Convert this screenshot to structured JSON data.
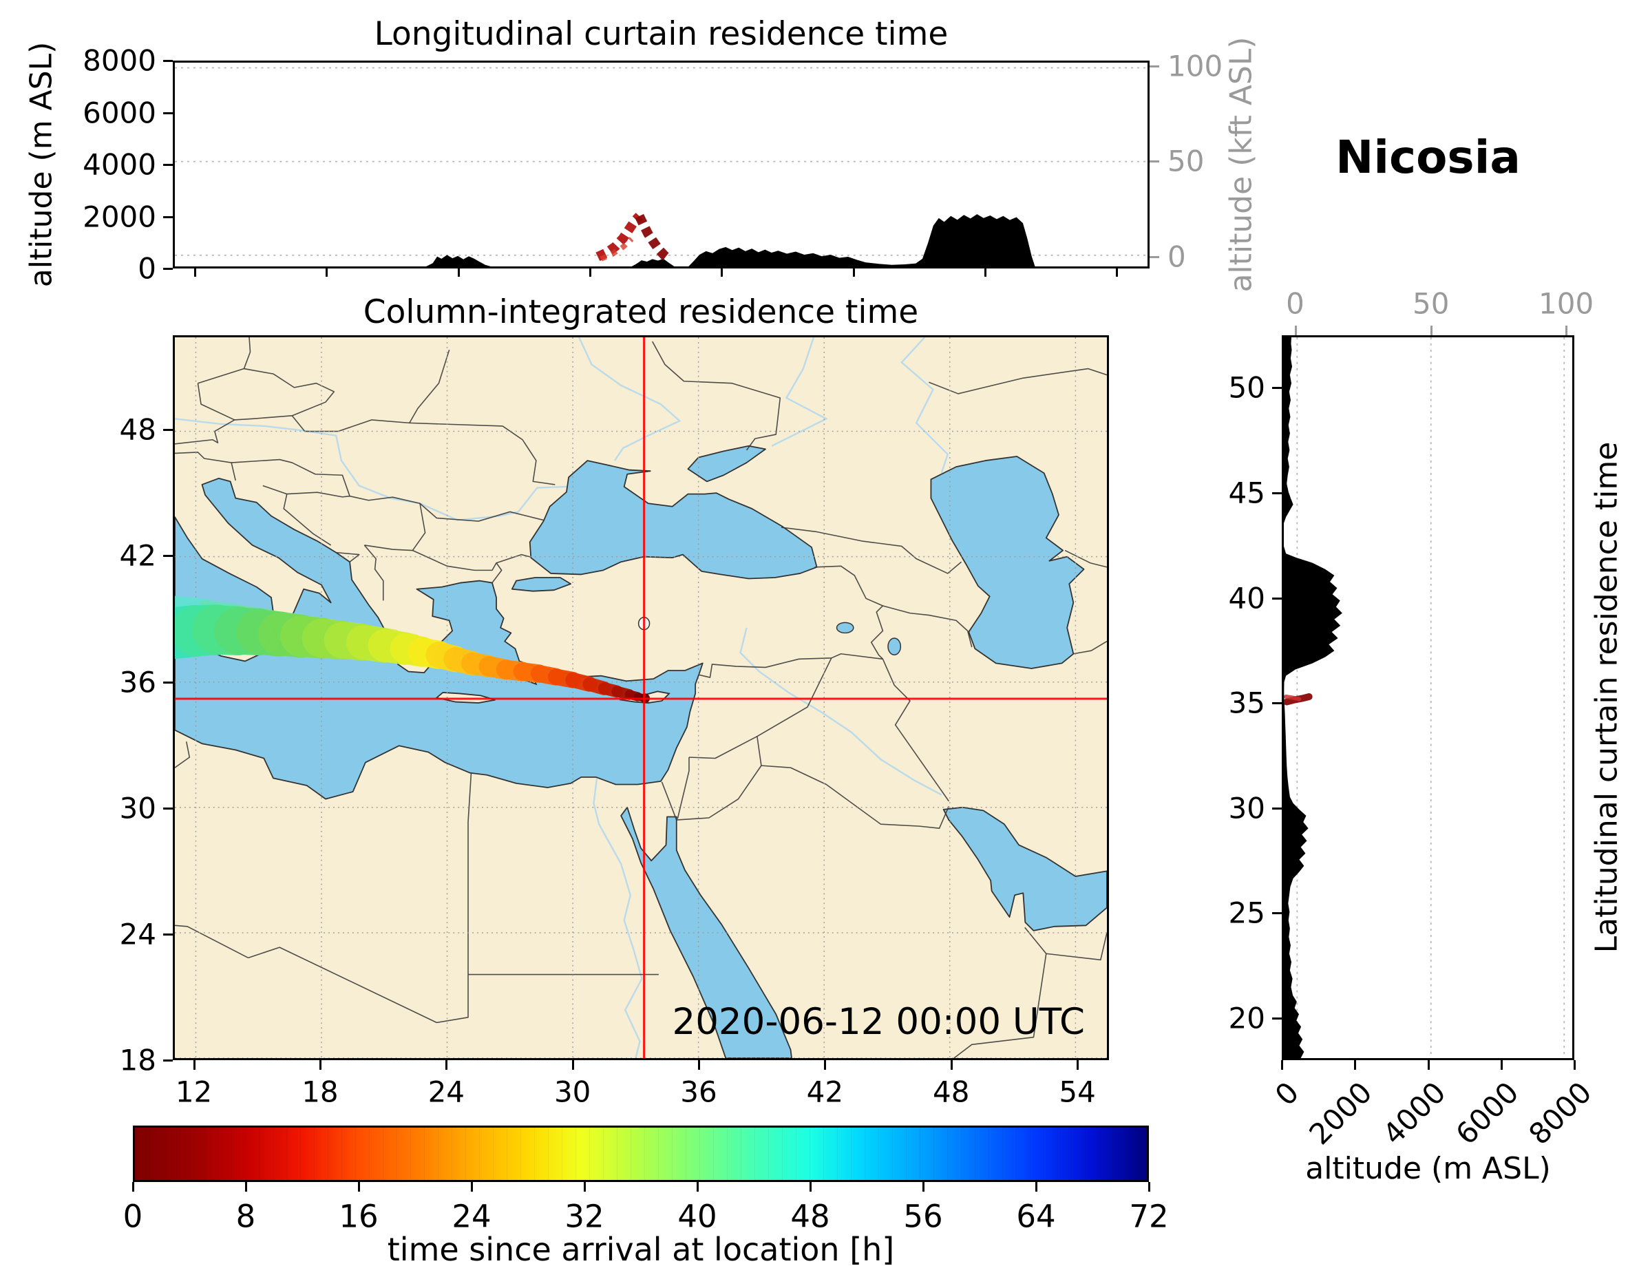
{
  "station": "Nicosia",
  "chart_data": {
    "longitudinal_curtain": {
      "type": "area",
      "title": "Longitudinal curtain residence time",
      "ylabel_left": "altitude (m ASL)",
      "ylabel_right": "altitude (kft ASL)",
      "lon_range": [
        11,
        55.5
      ],
      "ylim": [
        0,
        8000
      ],
      "yticks": [
        0,
        2000,
        4000,
        6000,
        8000
      ],
      "xticks": [
        12,
        18,
        24,
        30,
        36,
        42,
        48,
        54
      ],
      "kft_ticks": [
        {
          "value": 0,
          "frac": 0.945
        },
        {
          "value": 50,
          "frac": 0.485
        },
        {
          "value": 100,
          "frac": 0.025
        }
      ],
      "terrain_color": "#000000",
      "terrain_lon_alt": [
        [
          11,
          0
        ],
        [
          22.5,
          0
        ],
        [
          22.8,
          130
        ],
        [
          23.0,
          390
        ],
        [
          23.2,
          300
        ],
        [
          23.45,
          450
        ],
        [
          23.7,
          320
        ],
        [
          23.95,
          410
        ],
        [
          24.2,
          280
        ],
        [
          24.45,
          400
        ],
        [
          24.7,
          300
        ],
        [
          24.95,
          180
        ],
        [
          25.2,
          60
        ],
        [
          25.45,
          0
        ],
        [
          31.9,
          0
        ],
        [
          32.1,
          90
        ],
        [
          32.35,
          240
        ],
        [
          32.6,
          190
        ],
        [
          32.85,
          290
        ],
        [
          33.1,
          230
        ],
        [
          33.35,
          300
        ],
        [
          33.6,
          140
        ],
        [
          33.85,
          0
        ],
        [
          34.5,
          0
        ],
        [
          34.75,
          220
        ],
        [
          35.0,
          460
        ],
        [
          35.3,
          600
        ],
        [
          35.6,
          520
        ],
        [
          35.9,
          680
        ],
        [
          36.2,
          760
        ],
        [
          36.5,
          640
        ],
        [
          36.8,
          740
        ],
        [
          37.1,
          600
        ],
        [
          37.4,
          700
        ],
        [
          37.7,
          560
        ],
        [
          38.0,
          660
        ],
        [
          38.3,
          540
        ],
        [
          38.6,
          620
        ],
        [
          39.0,
          500
        ],
        [
          39.4,
          580
        ],
        [
          39.8,
          460
        ],
        [
          40.2,
          520
        ],
        [
          40.6,
          400
        ],
        [
          41.0,
          460
        ],
        [
          41.4,
          340
        ],
        [
          41.8,
          380
        ],
        [
          42.2,
          260
        ],
        [
          42.6,
          160
        ],
        [
          43.2,
          100
        ],
        [
          43.8,
          60
        ],
        [
          44.4,
          80
        ],
        [
          44.9,
          120
        ],
        [
          45.2,
          300
        ],
        [
          45.45,
          900
        ],
        [
          45.7,
          1600
        ],
        [
          45.95,
          1900
        ],
        [
          46.2,
          1750
        ],
        [
          46.5,
          1980
        ],
        [
          46.8,
          1830
        ],
        [
          47.1,
          2020
        ],
        [
          47.4,
          1880
        ],
        [
          47.7,
          2050
        ],
        [
          48.0,
          1900
        ],
        [
          48.3,
          2000
        ],
        [
          48.6,
          1860
        ],
        [
          48.9,
          1980
        ],
        [
          49.2,
          1820
        ],
        [
          49.5,
          1930
        ],
        [
          49.8,
          1700
        ],
        [
          50.0,
          1100
        ],
        [
          50.2,
          400
        ],
        [
          50.35,
          0
        ],
        [
          55.5,
          0
        ]
      ],
      "trajectory_marks": [
        {
          "points_lon_alt": [
            [
              30.35,
              380
            ],
            [
              30.75,
              540
            ],
            [
              31.15,
              780
            ],
            [
              31.5,
              1100
            ],
            [
              31.8,
              1480
            ],
            [
              32.05,
              1800
            ],
            [
              32.25,
              1980
            ]
          ],
          "color": "#b41414",
          "width": 14,
          "dash": "12 8",
          "opacity": 0.95
        },
        {
          "points_lon_alt": [
            [
              32.25,
              1980
            ],
            [
              32.45,
              1620
            ],
            [
              32.65,
              1280
            ],
            [
              32.9,
              960
            ],
            [
              33.15,
              660
            ],
            [
              33.4,
              430
            ],
            [
              33.55,
              330
            ]
          ],
          "color": "#8a0a0a",
          "width": 14,
          "dash": "12 8",
          "opacity": 0.95
        },
        {
          "points_lon_alt": [
            [
              30.5,
              300
            ],
            [
              31.0,
              480
            ],
            [
              31.5,
              760
            ],
            [
              31.9,
              1080
            ]
          ],
          "color": "#d43c2c",
          "width": 8,
          "dash": "8 9",
          "opacity": 0.8
        }
      ]
    },
    "map": {
      "type": "map",
      "title": "Column-integrated residence time",
      "date_label": "2020-06-12 00:00 UTC",
      "lon_range": [
        11,
        55.5
      ],
      "lat_range": [
        18,
        52.5
      ],
      "xticks": [
        12,
        18,
        24,
        30,
        36,
        42,
        48,
        54
      ],
      "yticks": [
        18,
        24,
        30,
        36,
        42,
        48
      ],
      "crosshair": {
        "lon": 33.4,
        "lat": 35.2,
        "color": "#ff0000"
      },
      "colors": {
        "land": "#f8eed3",
        "sea": "#87c9e8",
        "coast": "#333333",
        "border": "#3a3a3a",
        "grid": "#9a9a9a"
      },
      "plume_points_lon_lat_width_color": [
        [
          11.0,
          38.35,
          2.5,
          "#2fe0c8"
        ],
        [
          12.0,
          38.45,
          2.45,
          "#38e2b4"
        ],
        [
          13.0,
          38.5,
          2.4,
          "#42e49e"
        ],
        [
          14.0,
          38.45,
          2.3,
          "#4de18a"
        ],
        [
          15.0,
          38.4,
          2.2,
          "#58dd76"
        ],
        [
          16.0,
          38.3,
          2.1,
          "#64da64"
        ],
        [
          17.0,
          38.2,
          2.0,
          "#73da55"
        ],
        [
          18.0,
          38.1,
          1.9,
          "#84de4b"
        ],
        [
          19.0,
          38.0,
          1.8,
          "#97e241"
        ],
        [
          20.0,
          37.9,
          1.7,
          "#abe63a"
        ],
        [
          21.0,
          37.75,
          1.6,
          "#c0ea32"
        ],
        [
          22.0,
          37.6,
          1.5,
          "#d5ee2b"
        ],
        [
          22.8,
          37.45,
          1.4,
          "#e7f023"
        ],
        [
          23.6,
          37.3,
          1.3,
          "#f7ec1c"
        ],
        [
          24.4,
          37.1,
          1.2,
          "#fcd817"
        ],
        [
          25.2,
          36.9,
          1.1,
          "#ffc413"
        ],
        [
          26.0,
          36.75,
          1.0,
          "#ffb00f"
        ],
        [
          26.8,
          36.6,
          0.95,
          "#ff9a0b"
        ],
        [
          27.6,
          36.5,
          0.9,
          "#ff8408"
        ],
        [
          28.4,
          36.4,
          0.85,
          "#fc6e05"
        ],
        [
          29.2,
          36.25,
          0.8,
          "#f85a03"
        ],
        [
          30.0,
          36.1,
          0.75,
          "#f04601"
        ],
        [
          30.8,
          35.9,
          0.7,
          "#e43400"
        ],
        [
          31.5,
          35.7,
          0.62,
          "#d42600"
        ],
        [
          32.1,
          35.55,
          0.55,
          "#c01a00"
        ],
        [
          32.7,
          35.4,
          0.48,
          "#a81000"
        ],
        [
          33.1,
          35.3,
          0.4,
          "#920800"
        ],
        [
          33.45,
          35.22,
          0.34,
          "#7a0200"
        ]
      ],
      "plume_fringe_points_lon_lat_width_color": [
        [
          11.0,
          39.7,
          0.9,
          "#5ae8e0"
        ],
        [
          12.5,
          39.55,
          0.8,
          "#5ce6d0"
        ],
        [
          14.0,
          39.35,
          0.7,
          "#66e2b6"
        ],
        [
          15.5,
          39.15,
          0.65,
          "#76de9c"
        ],
        [
          17.0,
          38.95,
          0.55,
          "#88de84"
        ],
        [
          18.5,
          38.75,
          0.5,
          "#9ce06c"
        ],
        [
          20.0,
          38.55,
          0.45,
          "#b2e45a"
        ],
        [
          21.5,
          38.3,
          0.4,
          "#cdea48"
        ],
        [
          22.5,
          38.1,
          0.35,
          "#dfee3a"
        ]
      ],
      "arrival_point": {
        "lon": 33.45,
        "lat": 35.22,
        "color": "#6b0000"
      }
    },
    "latitudinal_curtain": {
      "type": "area",
      "ylabel_right": "Latitudinal curtain residence time",
      "xlabel": "altitude (m ASL)",
      "xlim": [
        0,
        8000
      ],
      "xticks": [
        0,
        2000,
        4000,
        6000,
        8000
      ],
      "lat_range": [
        18,
        52.5
      ],
      "lat_ticks": [
        20,
        25,
        30,
        35,
        40,
        45,
        50
      ],
      "kft_ticks": [
        {
          "value": 0,
          "frac": 0.046
        },
        {
          "value": 50,
          "frac": 0.51
        },
        {
          "value": 100,
          "frac": 0.972
        }
      ],
      "terrain_color": "#000000",
      "terrain_lat_alt": [
        [
          18,
          470
        ],
        [
          18.3,
          560
        ],
        [
          18.6,
          430
        ],
        [
          18.9,
          520
        ],
        [
          19.2,
          400
        ],
        [
          19.5,
          480
        ],
        [
          19.8,
          350
        ],
        [
          20.1,
          420
        ],
        [
          20.4,
          300
        ],
        [
          20.7,
          360
        ],
        [
          21.0,
          250
        ],
        [
          21.4,
          200
        ],
        [
          21.8,
          240
        ],
        [
          22.2,
          170
        ],
        [
          22.6,
          210
        ],
        [
          23.0,
          150
        ],
        [
          23.4,
          190
        ],
        [
          23.8,
          140
        ],
        [
          24.2,
          170
        ],
        [
          24.6,
          130
        ],
        [
          25.0,
          160
        ],
        [
          25.4,
          120
        ],
        [
          25.8,
          150
        ],
        [
          26.2,
          180
        ],
        [
          26.6,
          260
        ],
        [
          26.9,
          420
        ],
        [
          27.2,
          560
        ],
        [
          27.5,
          430
        ],
        [
          27.8,
          600
        ],
        [
          28.1,
          470
        ],
        [
          28.4,
          640
        ],
        [
          28.7,
          500
        ],
        [
          29.0,
          680
        ],
        [
          29.3,
          540
        ],
        [
          29.6,
          620
        ],
        [
          29.9,
          430
        ],
        [
          30.2,
          260
        ],
        [
          30.5,
          170
        ],
        [
          31.0,
          130
        ],
        [
          31.5,
          100
        ],
        [
          32.0,
          80
        ],
        [
          32.5,
          70
        ],
        [
          33.0,
          60
        ],
        [
          33.5,
          50
        ],
        [
          34.0,
          40
        ],
        [
          34.5,
          30
        ],
        [
          35.0,
          15
        ],
        [
          35.5,
          5
        ],
        [
          36.0,
          10
        ],
        [
          36.3,
          60
        ],
        [
          36.6,
          320
        ],
        [
          36.9,
          800
        ],
        [
          37.2,
          1150
        ],
        [
          37.5,
          1400
        ],
        [
          37.8,
          1250
        ],
        [
          38.1,
          1500
        ],
        [
          38.4,
          1330
        ],
        [
          38.7,
          1570
        ],
        [
          39.0,
          1400
        ],
        [
          39.3,
          1620
        ],
        [
          39.6,
          1450
        ],
        [
          39.9,
          1560
        ],
        [
          40.2,
          1350
        ],
        [
          40.5,
          1480
        ],
        [
          40.8,
          1280
        ],
        [
          41.1,
          1400
        ],
        [
          41.4,
          1150
        ],
        [
          41.7,
          800
        ],
        [
          41.95,
          350
        ],
        [
          42.15,
          60
        ],
        [
          42.5,
          0
        ],
        [
          43.6,
          0
        ],
        [
          43.9,
          60
        ],
        [
          44.2,
          160
        ],
        [
          44.5,
          260
        ],
        [
          44.8,
          190
        ],
        [
          45.1,
          130
        ],
        [
          45.5,
          80
        ],
        [
          45.9,
          110
        ],
        [
          46.3,
          150
        ],
        [
          46.7,
          110
        ],
        [
          47.1,
          160
        ],
        [
          47.5,
          120
        ],
        [
          47.9,
          170
        ],
        [
          48.3,
          130
        ],
        [
          48.7,
          180
        ],
        [
          49.1,
          140
        ],
        [
          49.5,
          190
        ],
        [
          49.9,
          150
        ],
        [
          50.3,
          210
        ],
        [
          50.7,
          170
        ],
        [
          51.1,
          230
        ],
        [
          51.5,
          190
        ],
        [
          51.9,
          220
        ],
        [
          52.2,
          200
        ],
        [
          52.5,
          210
        ]
      ],
      "trajectory_marks": [
        {
          "points_alt_lat": [
            [
              80,
              35.05
            ],
            [
              300,
              35.15
            ],
            [
              520,
              35.22
            ],
            [
              700,
              35.3
            ]
          ],
          "color": "#8a0a0a",
          "width": 10,
          "opacity": 0.95
        },
        {
          "points_alt_lat": [
            [
              60,
              35.3
            ],
            [
              260,
              35.25
            ],
            [
              430,
              35.18
            ]
          ],
          "color": "#c83232",
          "width": 6,
          "opacity": 0.85
        }
      ]
    },
    "colorbar": {
      "type": "colorbar",
      "label": "time since arrival at location [h]",
      "range": [
        0,
        72
      ],
      "ticks": [
        0,
        8,
        16,
        24,
        32,
        40,
        48,
        56,
        64,
        72
      ],
      "stops": [
        {
          "t": 0,
          "color": "#7f0000"
        },
        {
          "t": 0.055,
          "color": "#9b0000"
        },
        {
          "t": 0.11,
          "color": "#c80000"
        },
        {
          "t": 0.167,
          "color": "#f21800"
        },
        {
          "t": 0.22,
          "color": "#ff4d00"
        },
        {
          "t": 0.28,
          "color": "#ff7c00"
        },
        {
          "t": 0.33,
          "color": "#ffab00"
        },
        {
          "t": 0.39,
          "color": "#ffda00"
        },
        {
          "t": 0.44,
          "color": "#f2ff1c"
        },
        {
          "t": 0.5,
          "color": "#b3ff47"
        },
        {
          "t": 0.555,
          "color": "#7bff7b"
        },
        {
          "t": 0.61,
          "color": "#47ffb3"
        },
        {
          "t": 0.667,
          "color": "#1cffe4"
        },
        {
          "t": 0.72,
          "color": "#00d4ff"
        },
        {
          "t": 0.78,
          "color": "#00a0ff"
        },
        {
          "t": 0.833,
          "color": "#006eff"
        },
        {
          "t": 0.89,
          "color": "#0038ff"
        },
        {
          "t": 0.944,
          "color": "#0011d8"
        },
        {
          "t": 1,
          "color": "#000080"
        }
      ]
    }
  }
}
